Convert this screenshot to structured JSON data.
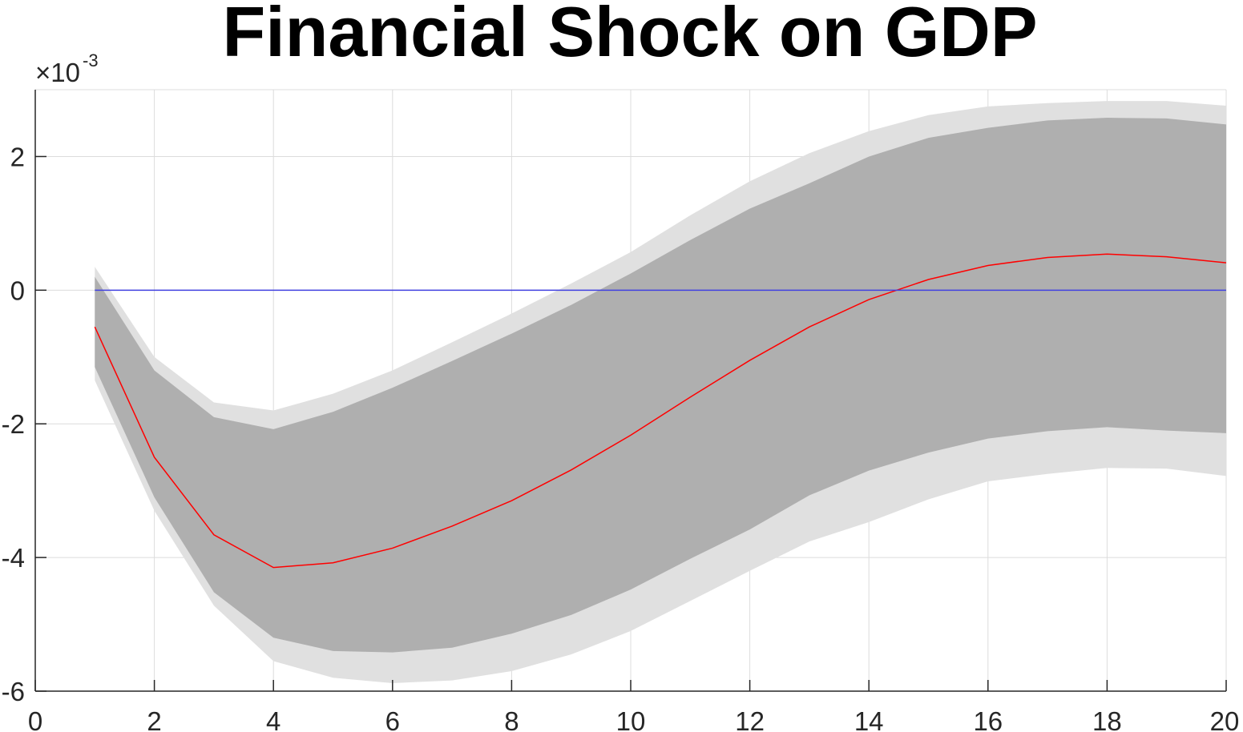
{
  "chart_data": {
    "type": "area",
    "title": "Financial Shock on GDP",
    "xlabel": "",
    "ylabel": "",
    "y_exponent_label": "×10",
    "y_exponent_power": "-3",
    "xlim": [
      0,
      20
    ],
    "ylim": [
      -6,
      3
    ],
    "x_ticks": [
      0,
      2,
      4,
      6,
      8,
      10,
      12,
      14,
      16,
      18,
      20
    ],
    "x_tick_labels": [
      "0",
      "2",
      "4",
      "6",
      "8",
      "10",
      "12",
      "14",
      "16",
      "18",
      "20"
    ],
    "y_ticks": [
      -6,
      -4,
      -2,
      0,
      2
    ],
    "y_tick_labels": [
      "-6",
      "-4",
      "-2",
      "0",
      "2"
    ],
    "grid": true,
    "x": [
      1,
      2,
      3,
      4,
      5,
      6,
      7,
      8,
      9,
      10,
      11,
      12,
      13,
      14,
      15,
      16,
      17,
      18,
      19,
      20
    ],
    "series": [
      {
        "role": "outer_band",
        "color": "#e0e0e0",
        "upper": [
          0.35,
          -1.0,
          -1.68,
          -1.8,
          -1.55,
          -1.2,
          -0.78,
          -0.35,
          0.1,
          0.57,
          1.12,
          1.63,
          2.05,
          2.38,
          2.62,
          2.75,
          2.8,
          2.83,
          2.83,
          2.76
        ],
        "lower": [
          -1.35,
          -3.3,
          -4.72,
          -5.55,
          -5.8,
          -5.88,
          -5.84,
          -5.7,
          -5.45,
          -5.1,
          -4.65,
          -4.2,
          -3.76,
          -3.47,
          -3.13,
          -2.86,
          -2.75,
          -2.66,
          -2.67,
          -2.78
        ]
      },
      {
        "role": "inner_band",
        "color": "#afafaf",
        "upper": [
          0.2,
          -1.2,
          -1.9,
          -2.08,
          -1.82,
          -1.46,
          -1.06,
          -0.65,
          -0.22,
          0.25,
          0.75,
          1.22,
          1.6,
          2.0,
          2.28,
          2.43,
          2.54,
          2.58,
          2.57,
          2.48
        ],
        "lower": [
          -1.15,
          -3.1,
          -4.52,
          -5.2,
          -5.4,
          -5.42,
          -5.35,
          -5.14,
          -4.86,
          -4.48,
          -4.02,
          -3.58,
          -3.07,
          -2.7,
          -2.43,
          -2.22,
          -2.11,
          -2.05,
          -2.1,
          -2.14
        ]
      },
      {
        "role": "median",
        "color": "#ff0000",
        "values": [
          -0.55,
          -2.5,
          -3.66,
          -4.15,
          -4.08,
          -3.86,
          -3.53,
          -3.15,
          -2.69,
          -2.17,
          -1.6,
          -1.05,
          -0.55,
          -0.14,
          0.16,
          0.37,
          0.49,
          0.54,
          0.5,
          0.41
        ]
      },
      {
        "role": "zero_line",
        "color": "#4040e0",
        "values": [
          0,
          0,
          0,
          0,
          0,
          0,
          0,
          0,
          0,
          0,
          0,
          0,
          0,
          0,
          0,
          0,
          0,
          0,
          0,
          0
        ]
      }
    ]
  },
  "colors": {
    "grid": "#dcdcdc",
    "axis": "#262626",
    "background": "#ffffff"
  }
}
